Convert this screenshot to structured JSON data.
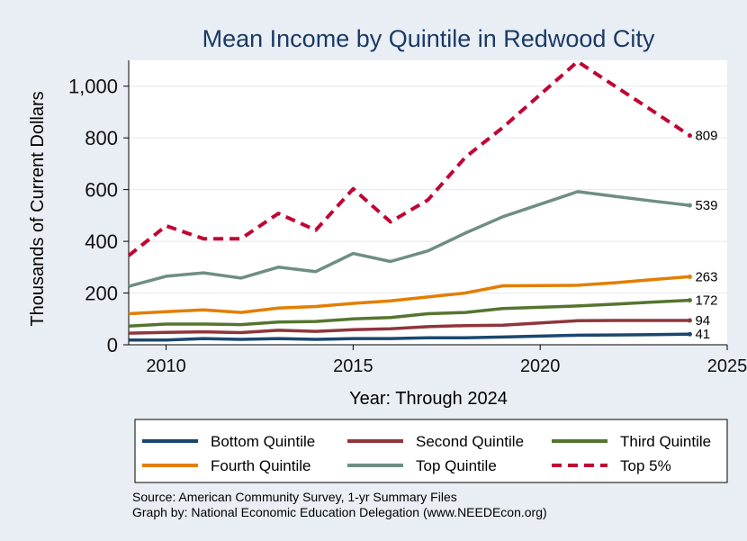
{
  "chart_data": {
    "type": "line",
    "title": "Mean Income by Quintile in Redwood City",
    "xlabel": "Year: Through 2024",
    "ylabel": "Thousands of Current Dollars",
    "xlim": [
      2009,
      2025
    ],
    "ylim": [
      0,
      1100
    ],
    "x_ticks": [
      2010,
      2015,
      2020,
      2025
    ],
    "x_tick_labels": [
      "2010",
      "2015",
      "2020",
      "2025"
    ],
    "y_ticks": [
      0,
      200,
      400,
      600,
      800,
      1000
    ],
    "y_tick_labels": [
      "0",
      "200",
      "400",
      "600",
      "800",
      "1,000"
    ],
    "grid": true,
    "legend_position": "bottom",
    "x": [
      2009,
      2010,
      2011,
      2012,
      2013,
      2014,
      2015,
      2016,
      2017,
      2018,
      2019,
      2021,
      2022,
      2023,
      2024
    ],
    "series": [
      {
        "name": "Bottom Quintile",
        "color": "#1a476f",
        "dash": false,
        "values": [
          18,
          18,
          24,
          21,
          24,
          21,
          24,
          24,
          27,
          27,
          30,
          37,
          38,
          39,
          41
        ],
        "end_label": "41"
      },
      {
        "name": "Second Quintile",
        "color": "#90353b",
        "dash": false,
        "values": [
          45,
          48,
          50,
          47,
          56,
          52,
          58,
          62,
          70,
          74,
          76,
          93,
          94,
          94,
          94
        ],
        "end_label": "94"
      },
      {
        "name": "Third Quintile",
        "color": "#55752f",
        "dash": false,
        "values": [
          72,
          80,
          80,
          78,
          88,
          90,
          100,
          105,
          120,
          125,
          140,
          150,
          157,
          165,
          172
        ],
        "end_label": "172"
      },
      {
        "name": "Fourth Quintile",
        "color": "#e37e00",
        "dash": false,
        "values": [
          120,
          128,
          135,
          125,
          142,
          148,
          160,
          170,
          185,
          200,
          228,
          230,
          240,
          252,
          263
        ],
        "end_label": "263"
      },
      {
        "name": "Top Quintile",
        "color": "#6e8e84",
        "dash": false,
        "values": [
          226,
          265,
          278,
          258,
          300,
          283,
          353,
          322,
          363,
          432,
          495,
          592,
          574,
          556,
          539
        ],
        "end_label": "539"
      },
      {
        "name": "Top 5%",
        "color": "#c10534",
        "dash": true,
        "values": [
          345,
          460,
          410,
          410,
          508,
          443,
          603,
          475,
          560,
          725,
          840,
          1095,
          1000,
          905,
          809
        ],
        "end_label": "809"
      }
    ]
  },
  "source_note": {
    "line1": "Source: American Community Survey, 1-yr Summary Files",
    "line2": "Graph by: National Economic Education Delegation (www.NEEDEcon.org)"
  }
}
